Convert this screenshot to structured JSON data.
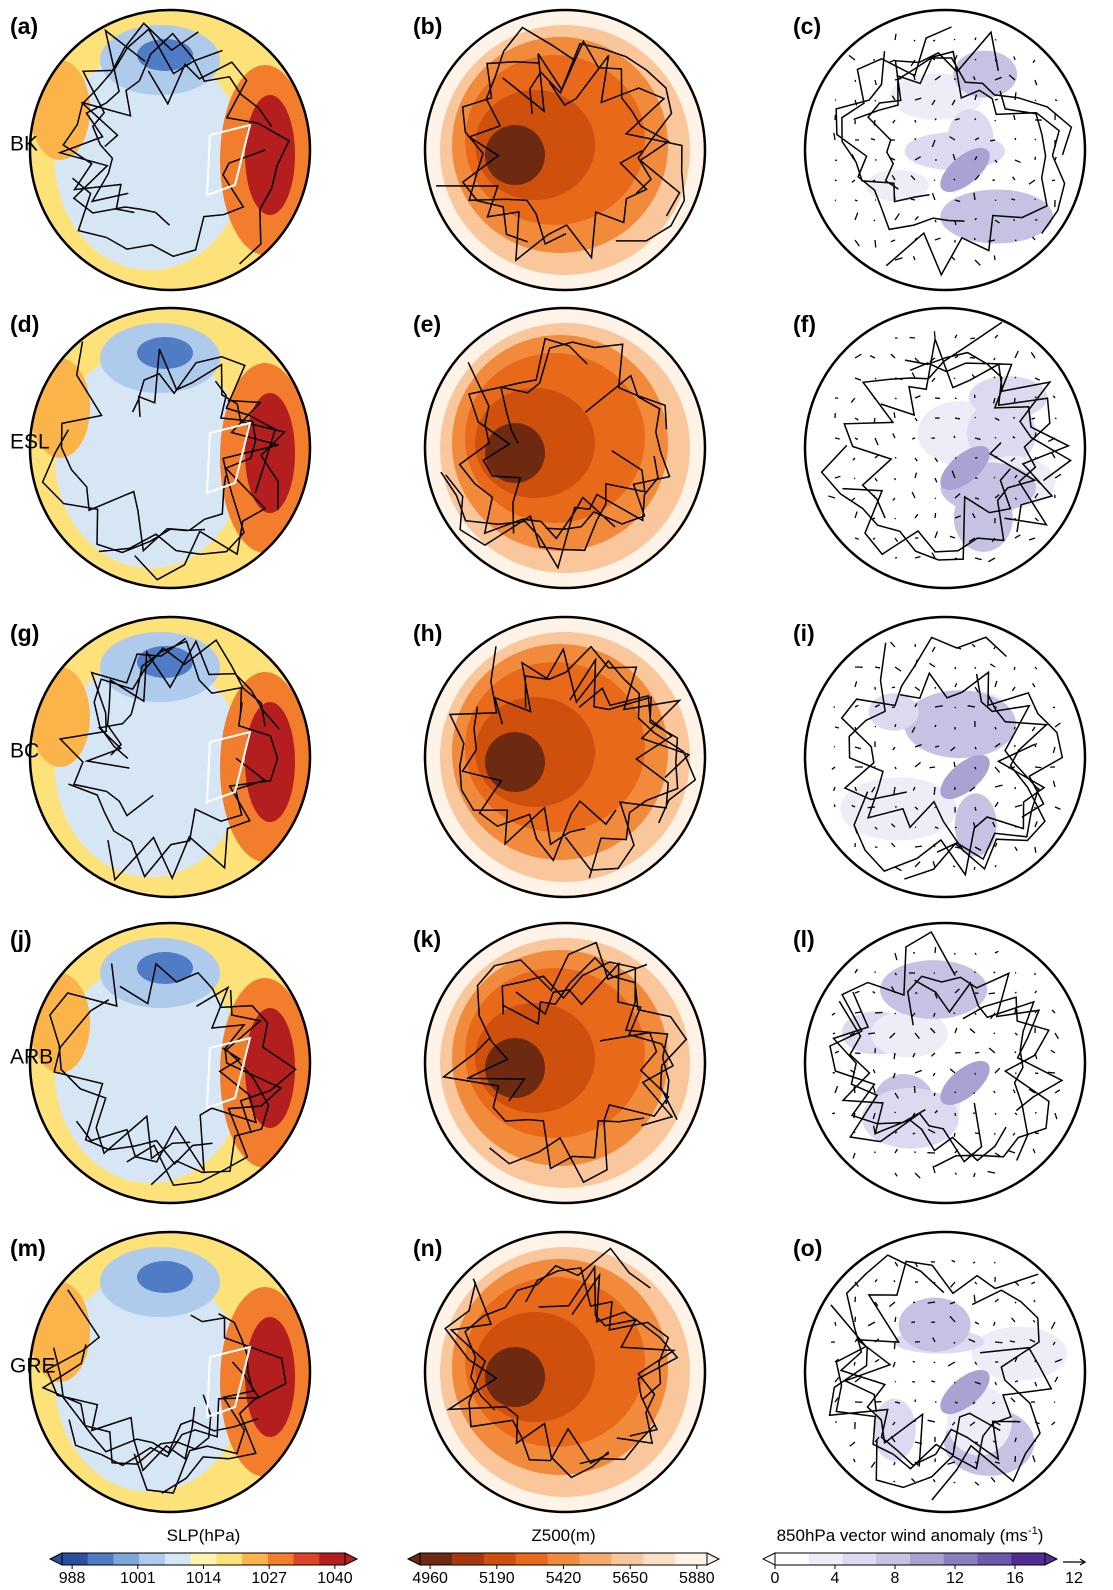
{
  "panels": [
    "(a)",
    "(b)",
    "(c)",
    "(d)",
    "(e)",
    "(f)",
    "(g)",
    "(h)",
    "(i)",
    "(j)",
    "(k)",
    "(l)",
    "(m)",
    "(n)",
    "(o)"
  ],
  "rows": [
    "BK",
    "ESL",
    "BC",
    "ARB",
    "GRE"
  ],
  "colorbars": [
    {
      "title": "SLP(hPa)",
      "lim": [
        986,
        1042
      ],
      "ticks": [
        988,
        1001,
        1014,
        1027,
        1040
      ],
      "colors": [
        "#2b4fa3",
        "#4f7cc4",
        "#7da7db",
        "#aecbec",
        "#d7e6f5",
        "#fff5b0",
        "#fde27a",
        "#fbb44a",
        "#f27d2c",
        "#dd4525",
        "#b51e1e"
      ]
    },
    {
      "title": "Z500(m)",
      "lim": [
        4925,
        5915
      ],
      "ticks": [
        4960,
        5190,
        5420,
        5650,
        5880
      ],
      "colors": [
        "#6e2a10",
        "#a63a0e",
        "#cf4f0c",
        "#e8691a",
        "#f28a3c",
        "#f6aa6a",
        "#f9c79b",
        "#fce0c6",
        "#fff3e7"
      ]
    },
    {
      "title": "850hPa vector wind anomaly (ms",
      "title_sup": "-1",
      "title_end": ")",
      "lim": [
        0,
        18
      ],
      "ticks": [
        0,
        4,
        8,
        12,
        16
      ],
      "colors": [
        "#ffffff",
        "#eeedf7",
        "#dcdaf0",
        "#c5c2e4",
        "#a9a3d4",
        "#8a80c1",
        "#6c59ad",
        "#4f2f96"
      ],
      "reference": 12
    }
  ]
}
